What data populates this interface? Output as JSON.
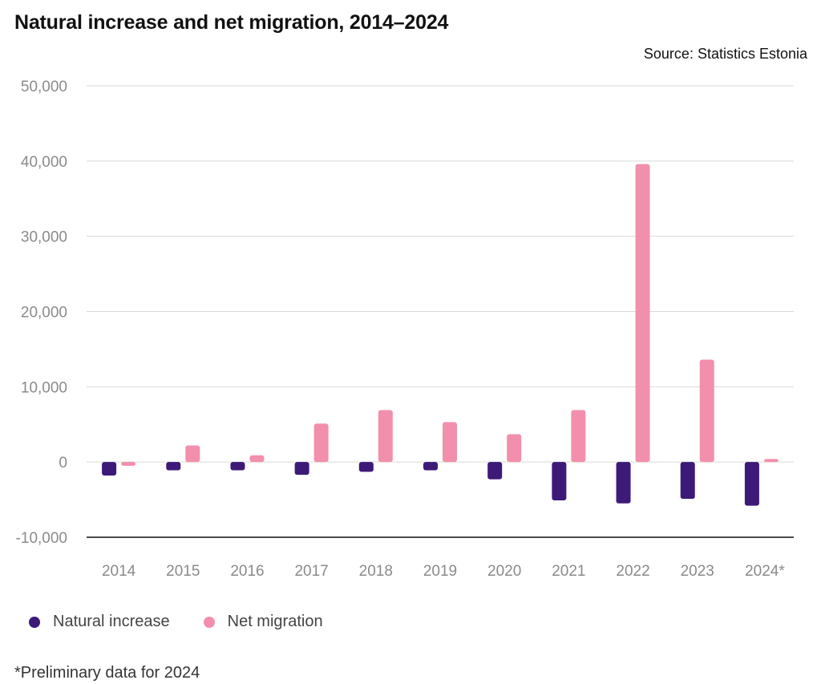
{
  "chart_data": {
    "type": "bar",
    "title": "Natural increase and net migration, 2014–2024",
    "source": "Source: Statistics Estonia",
    "footnote": "*Preliminary data for 2024",
    "categories": [
      "2014",
      "2015",
      "2016",
      "2017",
      "2018",
      "2019",
      "2020",
      "2021",
      "2022",
      "2023",
      "2024*"
    ],
    "series": [
      {
        "name": "Natural increase",
        "color": "#3d1a78",
        "values": [
          -1800,
          -1100,
          -1100,
          -1700,
          -1300,
          -1100,
          -2300,
          -5100,
          -5500,
          -4900,
          -5800
        ]
      },
      {
        "name": "Net migration",
        "color": "#f28fac",
        "values": [
          -500,
          2200,
          900,
          5100,
          6900,
          5300,
          3700,
          6900,
          39600,
          13600,
          400
        ]
      }
    ],
    "ylim": [
      -10000,
      50000
    ],
    "yticks": [
      "50,000",
      "40,000",
      "30,000",
      "20,000",
      "10,000",
      "0",
      "-10,000"
    ],
    "ytick_values": [
      50000,
      40000,
      30000,
      20000,
      10000,
      0,
      -10000
    ],
    "grid": true,
    "legend_position": "bottom-left"
  }
}
